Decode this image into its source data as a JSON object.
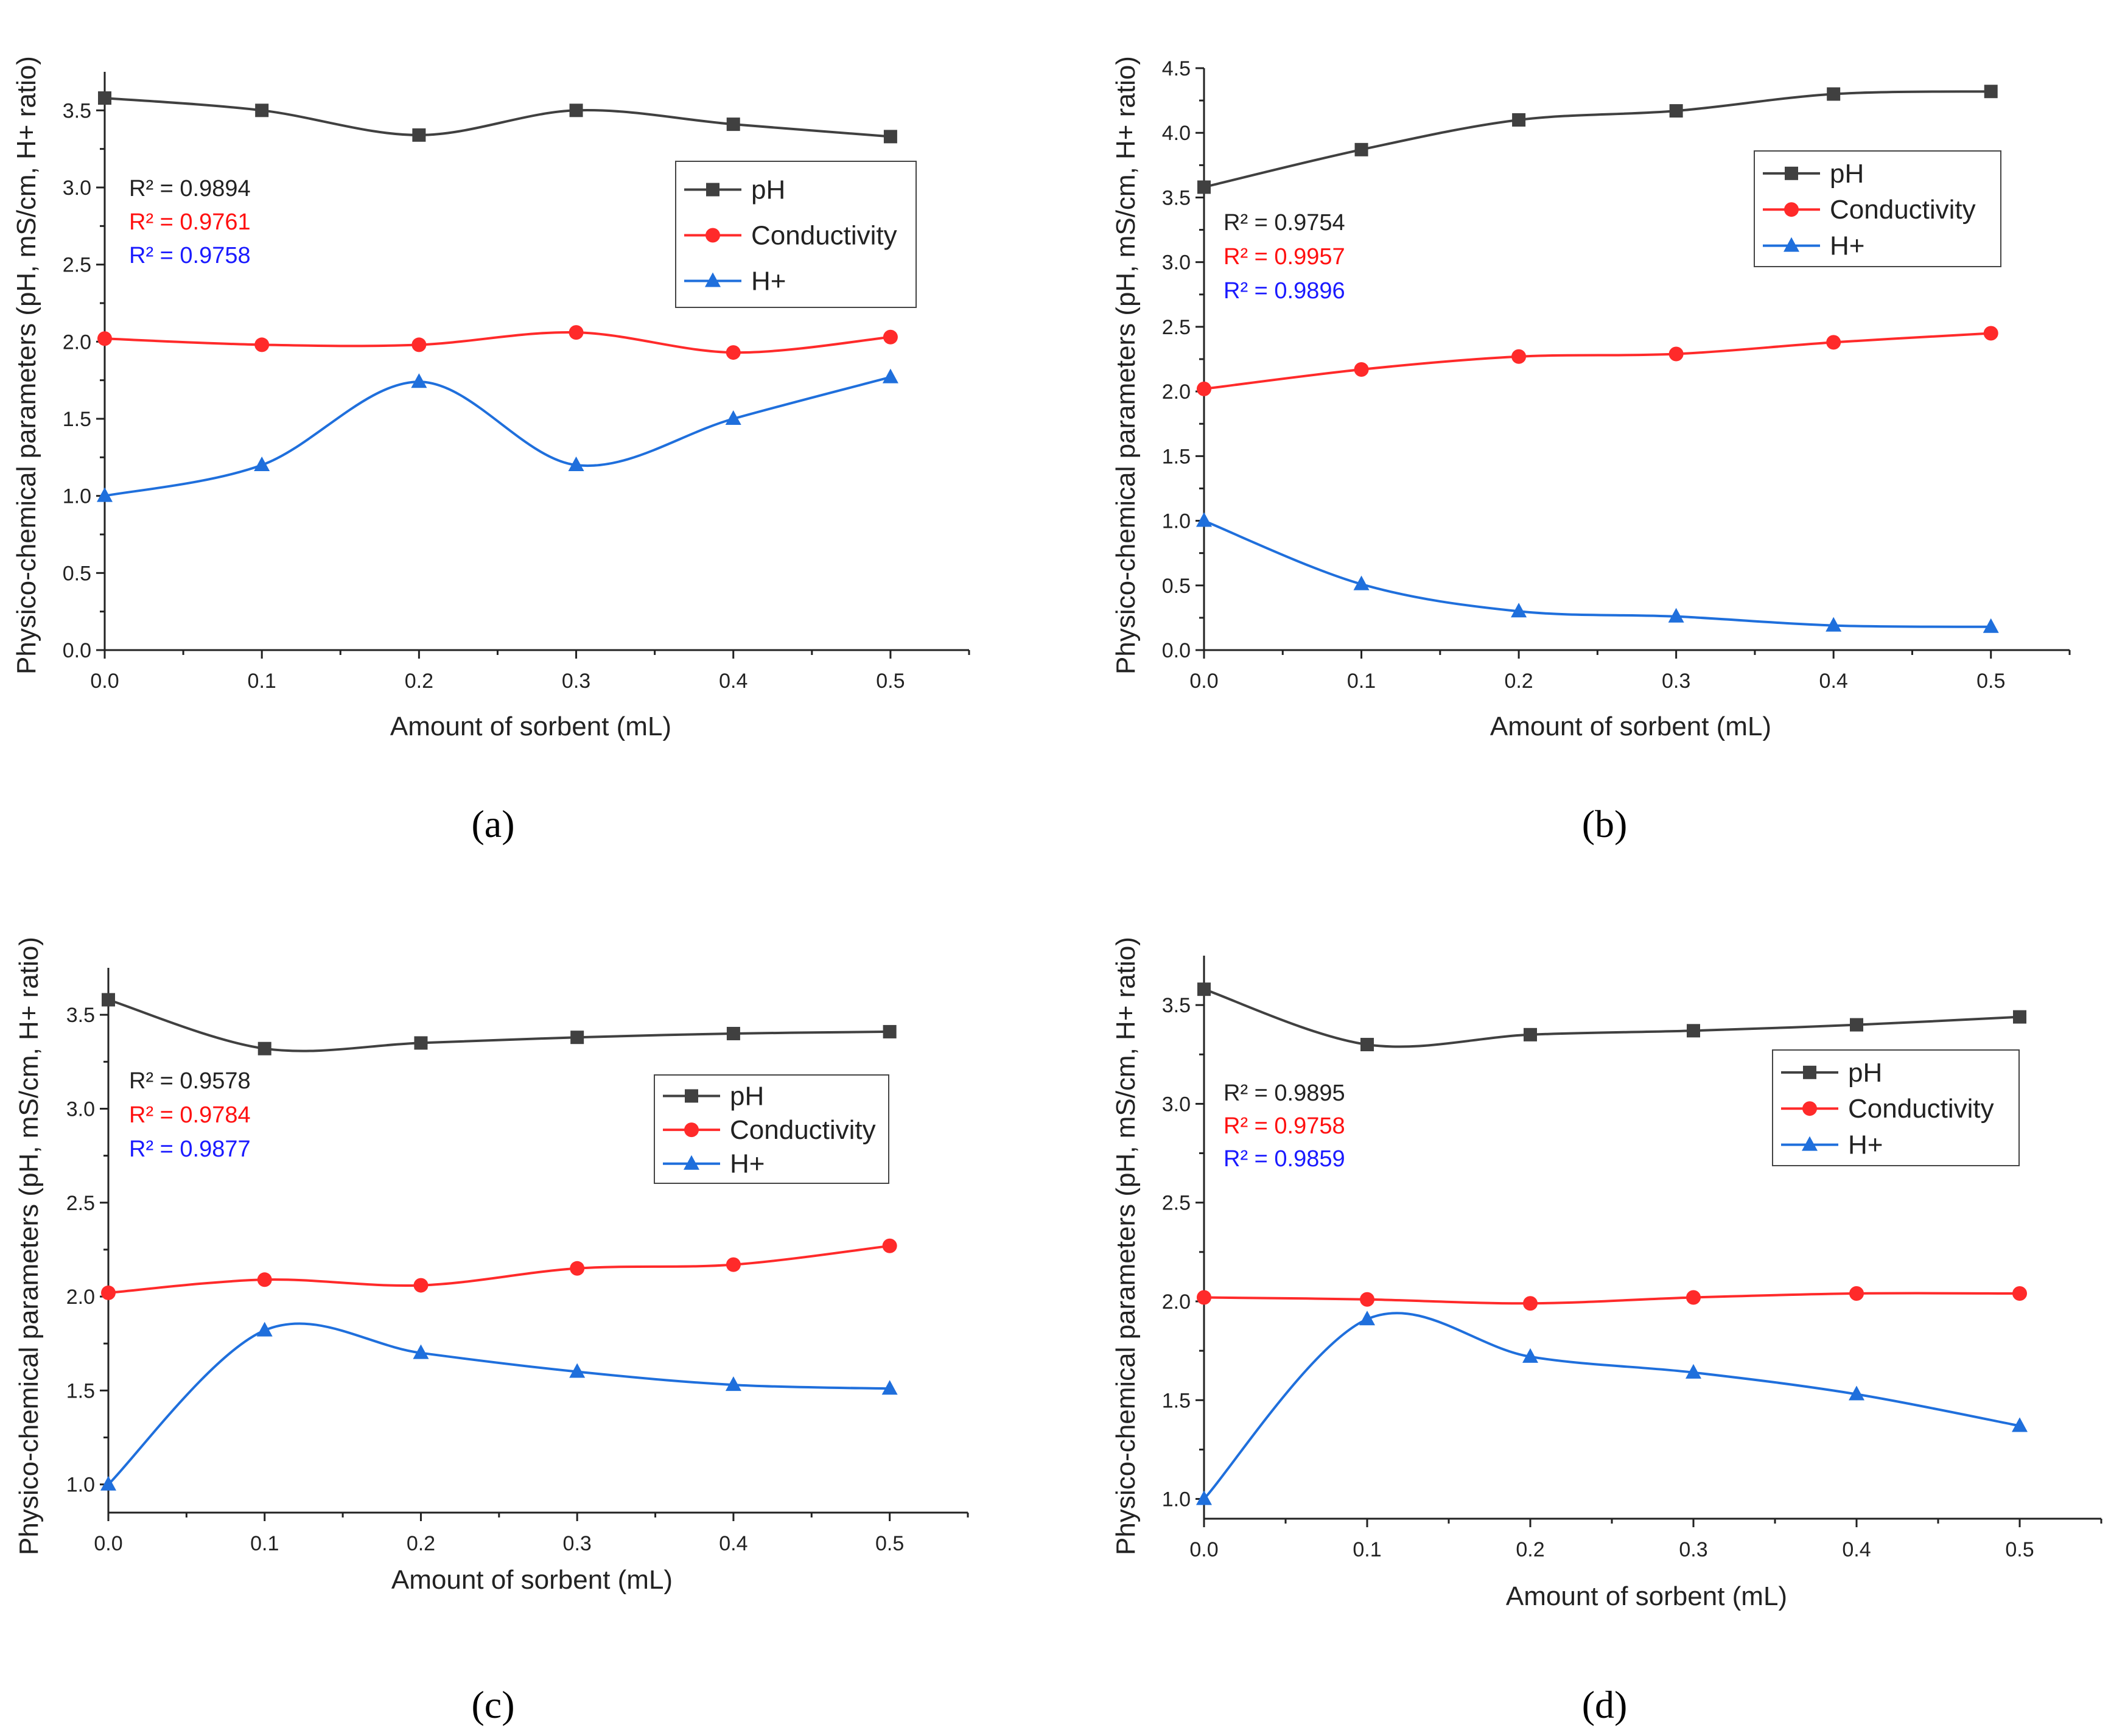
{
  "chart_data": [
    {
      "type": "line",
      "panel_label": "(a)",
      "x": [
        0.0,
        0.1,
        0.2,
        0.3,
        0.4,
        0.5
      ],
      "xlim": [
        0.0,
        0.55
      ],
      "ylim": [
        0.0,
        3.75
      ],
      "xticks": [
        "0.0",
        "0.1",
        "0.2",
        "0.3",
        "0.4",
        "0.5"
      ],
      "yticks": [
        "0.0",
        "0.5",
        "1.0",
        "1.5",
        "2.0",
        "2.5",
        "3.0",
        "3.5"
      ],
      "xlabel": "Amount of sorbent (mL)",
      "ylabel": "Physico-chemical parameters (pH, mS/cm, H+ ratio)",
      "legend_position": "upper-right",
      "series": [
        {
          "name": "pH",
          "color": "#404040",
          "marker": "square",
          "values": [
            3.58,
            3.5,
            3.34,
            3.5,
            3.41,
            3.33
          ]
        },
        {
          "name": "Conductivity",
          "color": "#ff2a2a",
          "marker": "circle",
          "values": [
            2.02,
            1.98,
            1.98,
            2.06,
            1.93,
            2.03
          ]
        },
        {
          "name": "H+",
          "color": "#1f6fdc",
          "marker": "triangle",
          "values": [
            1.0,
            1.2,
            1.74,
            1.2,
            1.5,
            1.77
          ]
        }
      ],
      "annotations": [
        {
          "text": "R² = 0.9894",
          "color": "#222222"
        },
        {
          "text": "R² = 0.9761",
          "color": "#ff1010"
        },
        {
          "text": "R² = 0.9758",
          "color": "#1a1aff"
        }
      ]
    },
    {
      "type": "line",
      "panel_label": "(b)",
      "x": [
        0.0,
        0.1,
        0.2,
        0.3,
        0.4,
        0.5
      ],
      "xlim": [
        0.0,
        0.55
      ],
      "ylim": [
        0.0,
        4.5
      ],
      "xticks": [
        "0.0",
        "0.1",
        "0.2",
        "0.3",
        "0.4",
        "0.5"
      ],
      "yticks": [
        "0.0",
        "0.5",
        "1.0",
        "1.5",
        "2.0",
        "2.5",
        "3.0",
        "3.5",
        "4.0",
        "4.5"
      ],
      "xlabel": "Amount of sorbent (mL)",
      "ylabel": "Physico-chemical parameters (pH, mS/cm, H+ ratio)",
      "legend_position": "upper-right",
      "series": [
        {
          "name": "pH",
          "color": "#404040",
          "marker": "square",
          "values": [
            3.58,
            3.87,
            4.1,
            4.17,
            4.3,
            4.32
          ]
        },
        {
          "name": "Conductivity",
          "color": "#ff2a2a",
          "marker": "circle",
          "values": [
            2.02,
            2.17,
            2.27,
            2.29,
            2.38,
            2.45
          ]
        },
        {
          "name": "H+",
          "color": "#1f6fdc",
          "marker": "triangle",
          "values": [
            1.0,
            0.51,
            0.3,
            0.26,
            0.19,
            0.18
          ]
        }
      ],
      "annotations": [
        {
          "text": "R² = 0.9754",
          "color": "#222222"
        },
        {
          "text": "R² = 0.9957",
          "color": "#ff1010"
        },
        {
          "text": "R² = 0.9896",
          "color": "#1a1aff"
        }
      ]
    },
    {
      "type": "line",
      "panel_label": "(c)",
      "x": [
        0.0,
        0.1,
        0.2,
        0.3,
        0.4,
        0.5
      ],
      "xlim": [
        0.0,
        0.55
      ],
      "ylim": [
        0.85,
        3.75
      ],
      "xticks": [
        "0.0",
        "0.1",
        "0.2",
        "0.3",
        "0.4",
        "0.5"
      ],
      "yticks": [
        "1.0",
        "1.5",
        "2.0",
        "2.5",
        "3.0",
        "3.5"
      ],
      "xlabel": "Amount of sorbent (mL)",
      "ylabel": "Physico-chemical parameters (pH, mS/cm, H+ ratio)",
      "legend_position": "right",
      "series": [
        {
          "name": "pH",
          "color": "#404040",
          "marker": "square",
          "values": [
            3.58,
            3.32,
            3.35,
            3.38,
            3.4,
            3.41
          ]
        },
        {
          "name": "Conductivity",
          "color": "#ff2a2a",
          "marker": "circle",
          "values": [
            2.02,
            2.09,
            2.06,
            2.15,
            2.17,
            2.27
          ]
        },
        {
          "name": "H+",
          "color": "#1f6fdc",
          "marker": "triangle",
          "values": [
            1.0,
            1.82,
            1.7,
            1.6,
            1.53,
            1.51
          ]
        }
      ],
      "annotations": [
        {
          "text": "R² = 0.9578",
          "color": "#222222"
        },
        {
          "text": "R² = 0.9784",
          "color": "#ff1010"
        },
        {
          "text": "R² = 0.9877",
          "color": "#1a1aff"
        }
      ]
    },
    {
      "type": "line",
      "panel_label": "(d)",
      "x": [
        0.0,
        0.1,
        0.2,
        0.3,
        0.4,
        0.5
      ],
      "xlim": [
        0.0,
        0.55
      ],
      "ylim": [
        0.9,
        3.75
      ],
      "xticks": [
        "0.0",
        "0.1",
        "0.2",
        "0.3",
        "0.4",
        "0.5"
      ],
      "yticks": [
        "1.0",
        "1.5",
        "2.0",
        "2.5",
        "3.0",
        "3.5"
      ],
      "xlabel": "Amount of sorbent (mL)",
      "ylabel": "Physico-chemical parameters (pH, mS/cm, H+ ratio)",
      "legend_position": "upper-right",
      "series": [
        {
          "name": "pH",
          "color": "#404040",
          "marker": "square",
          "values": [
            3.58,
            3.3,
            3.35,
            3.37,
            3.4,
            3.44
          ]
        },
        {
          "name": "Conductivity",
          "color": "#ff2a2a",
          "marker": "circle",
          "values": [
            2.02,
            2.01,
            1.99,
            2.02,
            2.04,
            2.04
          ]
        },
        {
          "name": "H+",
          "color": "#1f6fdc",
          "marker": "triangle",
          "values": [
            1.0,
            1.91,
            1.72,
            1.64,
            1.53,
            1.37
          ]
        }
      ],
      "annotations": [
        {
          "text": "R² = 0.9895",
          "color": "#222222"
        },
        {
          "text": "R² = 0.9758",
          "color": "#ff1010"
        },
        {
          "text": "R² = 0.9859",
          "color": "#1a1aff"
        }
      ]
    }
  ]
}
